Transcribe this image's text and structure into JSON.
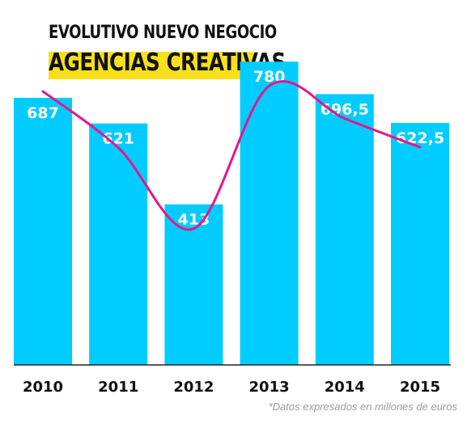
{
  "chart_data": {
    "type": "bar",
    "title": "EVOLUTIVO NUEVO NEGOCIO",
    "subtitle": "AGENCIAS CREATIVAS",
    "categories": [
      "2010",
      "2011",
      "2012",
      "2013",
      "2014",
      "2015"
    ],
    "values": [
      687,
      621,
      413,
      780,
      696.5,
      622.5
    ],
    "value_labels": [
      "687",
      "621",
      "413",
      "780",
      "696,5",
      "622,5"
    ],
    "ylim": [
      0,
      820
    ],
    "grid": false,
    "legend": "none",
    "trend_line": true,
    "colors": {
      "bar": "#00ccff",
      "trend": "#e6168c",
      "highlight": "#f7e01b",
      "axis": "#222222"
    },
    "footnote": "*Datos expresados en millones de euros"
  }
}
